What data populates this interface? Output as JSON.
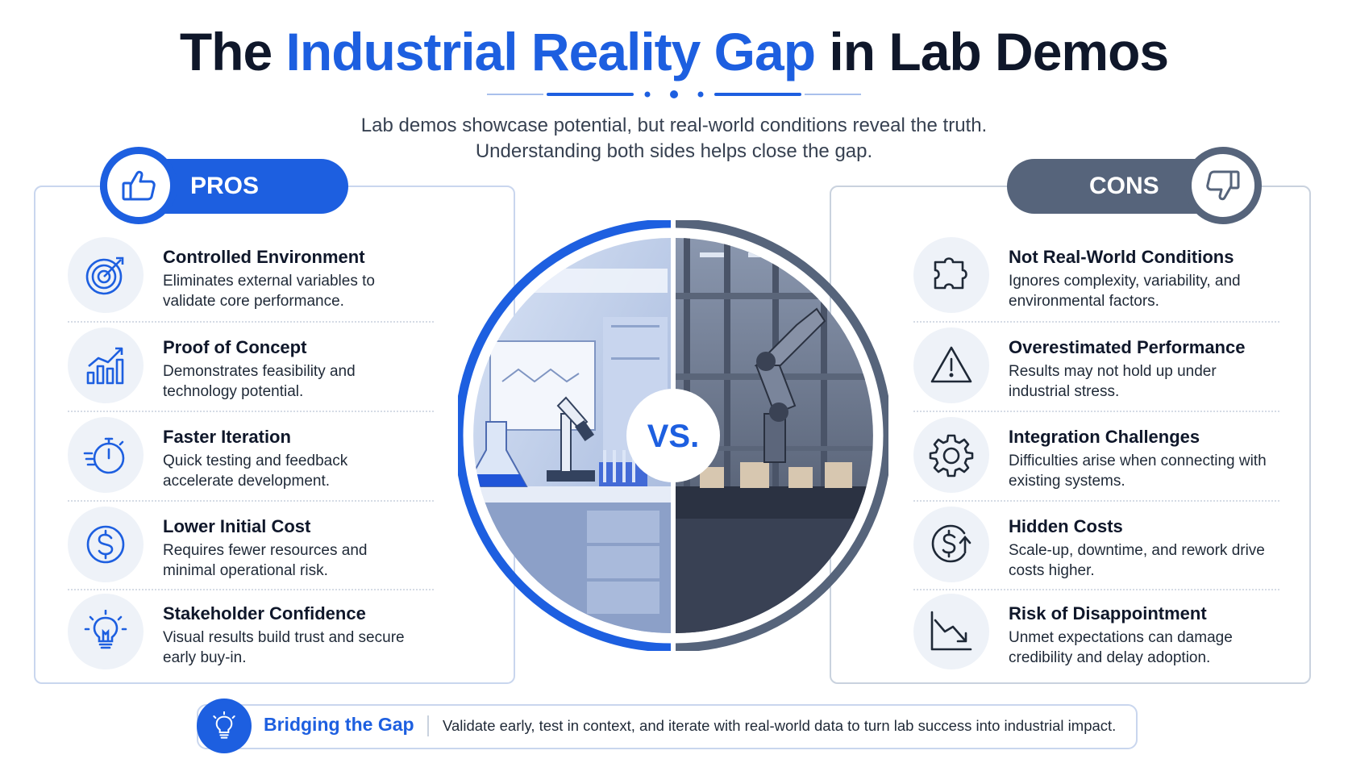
{
  "title": {
    "prefix": "The ",
    "accent": "Industrial Reality Gap",
    "suffix": " in Lab Demos"
  },
  "subtitle": {
    "line1": "Lab demos showcase potential, but real-world conditions reveal the truth.",
    "line2": "Understanding both sides helps close the gap."
  },
  "colors": {
    "accent_blue": "#1d5fe0",
    "slate": "#56647b",
    "heading_dark": "#0f172a"
  },
  "pros": {
    "label": "PROS",
    "badge_icon": "thumbs-up-icon",
    "items": [
      {
        "icon": "target-icon",
        "title": "Controlled Environment",
        "desc": "Eliminates external variables to validate core performance."
      },
      {
        "icon": "growth-chart-icon",
        "title": "Proof of Concept",
        "desc": "Demonstrates feasibility and technology potential."
      },
      {
        "icon": "stopwatch-icon",
        "title": "Faster Iteration",
        "desc": "Quick testing and feedback accelerate development."
      },
      {
        "icon": "dollar-icon",
        "title": "Lower Initial Cost",
        "desc": "Requires fewer resources and minimal operational risk."
      },
      {
        "icon": "lightbulb-icon",
        "title": "Stakeholder Confidence",
        "desc": "Visual results build trust and secure early buy-in."
      }
    ]
  },
  "cons": {
    "label": "CONS",
    "badge_icon": "thumbs-down-icon",
    "items": [
      {
        "icon": "puzzle-icon",
        "title": "Not Real-World Conditions",
        "desc": "Ignores complexity, variability, and environmental factors."
      },
      {
        "icon": "warning-icon",
        "title": "Overestimated Performance",
        "desc": "Results may not hold up under industrial stress."
      },
      {
        "icon": "gear-icon",
        "title": "Integration Challenges",
        "desc": "Difficulties arise when connecting with existing systems."
      },
      {
        "icon": "rising-cost-icon",
        "title": "Hidden Costs",
        "desc": "Scale-up, downtime, and rework drive costs higher."
      },
      {
        "icon": "declining-chart-icon",
        "title": "Risk of Disappointment",
        "desc": "Unmet expectations can damage credibility and delay adoption."
      }
    ]
  },
  "center": {
    "vs_label": "VS.",
    "left_image": "laboratory-illustration",
    "right_image": "factory-robot-illustration"
  },
  "footer": {
    "icon": "lightbulb-icon",
    "title": "Bridging the Gap",
    "text": "Validate early, test in context, and iterate with real-world data to turn lab success into industrial impact."
  }
}
